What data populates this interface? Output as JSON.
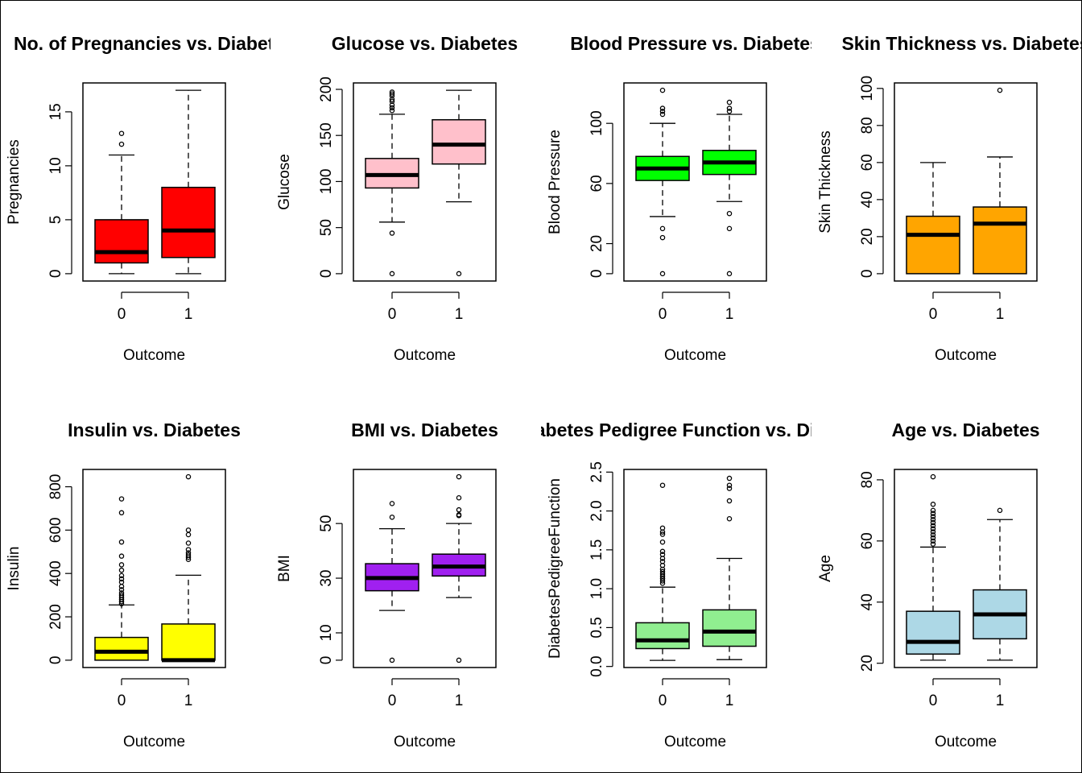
{
  "chart_data": [
    {
      "type": "box",
      "title": "No. of Pregnancies vs. Diabetes",
      "xlabel": "Outcome",
      "ylabel": "Pregnancies",
      "categories": [
        "0",
        "1"
      ],
      "yticks": [
        0,
        5,
        10,
        15
      ],
      "ylim": [
        -0.68,
        17.68
      ],
      "color": "#FF0000",
      "boxes": [
        {
          "category": "0",
          "min": 0,
          "q1": 1,
          "median": 2,
          "q3": 5,
          "max": 11,
          "outliers": [
            12,
            13
          ]
        },
        {
          "category": "1",
          "min": 0,
          "q1": 1.5,
          "median": 4,
          "q3": 8,
          "max": 17,
          "outliers": []
        }
      ]
    },
    {
      "type": "box",
      "title": "Glucose vs. Diabetes",
      "xlabel": "Outcome",
      "ylabel": "Glucose",
      "categories": [
        "0",
        "1"
      ],
      "yticks": [
        0,
        50,
        100,
        150,
        200
      ],
      "ylim": [
        -7.96,
        206.96
      ],
      "color": "#FFC0CB",
      "boxes": [
        {
          "category": "0",
          "min": 56,
          "q1": 93,
          "median": 107,
          "q3": 125,
          "max": 173,
          "outliers": [
            0,
            44,
            177,
            180,
            183,
            187,
            189,
            193,
            195,
            197
          ]
        },
        {
          "category": "1",
          "min": 78,
          "q1": 119,
          "median": 140,
          "q3": 167,
          "max": 199,
          "outliers": [
            0
          ]
        }
      ]
    },
    {
      "type": "box",
      "title": "Blood Pressure vs. Diabetes",
      "xlabel": "Outcome",
      "ylabel": "Blood Pressure",
      "categories": [
        "0",
        "1"
      ],
      "yticks": [
        0,
        20,
        60,
        100
      ],
      "ylim": [
        -4.88,
        126.88
      ],
      "color": "#00FF00",
      "boxes": [
        {
          "category": "0",
          "min": 38,
          "q1": 62,
          "median": 70,
          "q3": 78,
          "max": 100,
          "outliers": [
            0,
            24,
            30,
            106,
            108,
            110,
            122
          ]
        },
        {
          "category": "1",
          "min": 48,
          "q1": 66,
          "median": 74,
          "q3": 82,
          "max": 106,
          "outliers": [
            0,
            30,
            40,
            108,
            110,
            114
          ]
        }
      ]
    },
    {
      "type": "box",
      "title": "Skin Thickness vs. Diabetes",
      "xlabel": "Outcome",
      "ylabel": "Skin Thickness",
      "categories": [
        "0",
        "1"
      ],
      "yticks": [
        0,
        20,
        40,
        60,
        80,
        100
      ],
      "ylim": [
        -3.96,
        102.96
      ],
      "color": "#FFA500",
      "boxes": [
        {
          "category": "0",
          "min": 0,
          "q1": 0,
          "median": 21,
          "q3": 31,
          "max": 60,
          "outliers": []
        },
        {
          "category": "1",
          "min": 0,
          "q1": 0,
          "median": 27,
          "q3": 36,
          "max": 63,
          "outliers": [
            99
          ]
        }
      ]
    },
    {
      "type": "box",
      "title": "Insulin vs. Diabetes",
      "xlabel": "Outcome",
      "ylabel": "Insulin",
      "categories": [
        "0",
        "1"
      ],
      "yticks": [
        0,
        200,
        400,
        600,
        800
      ],
      "ylim": [
        -33.84,
        879.84
      ],
      "color": "#FFFF00",
      "boxes": [
        {
          "category": "0",
          "min": 0,
          "q1": 0,
          "median": 39,
          "q3": 105,
          "max": 255,
          "outliers": [
            260,
            270,
            280,
            290,
            300,
            310,
            325,
            340,
            360,
            375,
            390,
            415,
            440,
            480,
            545,
            680,
            744
          ]
        },
        {
          "category": "1",
          "min": 0,
          "q1": 0,
          "median": 0,
          "q3": 167,
          "max": 392,
          "outliers": [
            465,
            475,
            485,
            495,
            510,
            540,
            579,
            600,
            846
          ]
        }
      ]
    },
    {
      "type": "box",
      "title": "BMI vs. Diabetes",
      "xlabel": "Outcome",
      "ylabel": "BMI",
      "categories": [
        "0",
        "1"
      ],
      "yticks": [
        0,
        10,
        30,
        50
      ],
      "ylim": [
        -2.68,
        69.78
      ],
      "color": "#A020F0",
      "boxes": [
        {
          "category": "0",
          "min": 18.2,
          "q1": 25.4,
          "median": 30.05,
          "q3": 35.3,
          "max": 48.1,
          "outliers": [
            0,
            52.3,
            57.3
          ]
        },
        {
          "category": "1",
          "min": 22.9,
          "q1": 30.8,
          "median": 34.25,
          "q3": 38.8,
          "max": 50,
          "outliers": [
            0,
            52.9,
            53.2,
            55,
            59.4,
            67.1
          ]
        }
      ]
    },
    {
      "type": "box",
      "title": "Diabetes Pedigree Function vs. Diabetes",
      "xlabel": "Outcome",
      "ylabel": "DiabetesPedigreeFunction",
      "categories": [
        "0",
        "1"
      ],
      "yticks": [
        0.0,
        0.5,
        1.0,
        1.5,
        2.0,
        2.5
      ],
      "ylim": [
        -0.0137,
        2.5343
      ],
      "color": "#90EE90",
      "boxes": [
        {
          "category": "0",
          "min": 0.078,
          "q1": 0.23,
          "median": 0.336,
          "q3": 0.562,
          "max": 1.02,
          "outliers": [
            1.07,
            1.1,
            1.13,
            1.16,
            1.19,
            1.22,
            1.25,
            1.3,
            1.35,
            1.39,
            1.44,
            1.48,
            1.6,
            1.7,
            1.73,
            1.78,
            2.33
          ]
        },
        {
          "category": "1",
          "min": 0.088,
          "q1": 0.26,
          "median": 0.449,
          "q3": 0.728,
          "max": 1.39,
          "outliers": [
            1.9,
            2.13,
            2.29,
            2.33,
            2.42
          ]
        }
      ]
    },
    {
      "type": "box",
      "title": "Age vs. Diabetes",
      "xlabel": "Outcome",
      "ylabel": "Age",
      "categories": [
        "0",
        "1"
      ],
      "yticks": [
        20,
        40,
        60,
        80
      ],
      "ylim": [
        18.6,
        83.4
      ],
      "color": "#ADD8E6",
      "boxes": [
        {
          "category": "0",
          "min": 21,
          "q1": 23,
          "median": 27,
          "q3": 37,
          "max": 58,
          "outliers": [
            59,
            60,
            61,
            62,
            63,
            64,
            65,
            66,
            67,
            68,
            69,
            70,
            72,
            81
          ]
        },
        {
          "category": "1",
          "min": 21,
          "q1": 28,
          "median": 36,
          "q3": 44,
          "max": 67,
          "outliers": [
            70
          ]
        }
      ]
    }
  ]
}
